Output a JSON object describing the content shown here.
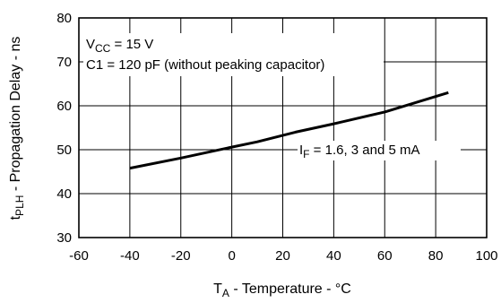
{
  "chart_data": {
    "type": "line",
    "xlabel": {
      "main": "T",
      "sub": "A",
      "rest": " - Temperature - °C"
    },
    "ylabel": {
      "main": "t",
      "sub": "PLH",
      "rest": " - Propagation Delay - ns"
    },
    "xlim": [
      -60,
      100
    ],
    "ylim": [
      30,
      80
    ],
    "x_ticks": [
      -60,
      -40,
      -20,
      0,
      20,
      40,
      60,
      80,
      100
    ],
    "y_ticks": [
      30,
      40,
      50,
      60,
      70,
      80
    ],
    "grid": true,
    "series": [
      {
        "x": [
          -40,
          -20,
          0,
          10,
          25,
          40,
          60,
          85
        ],
        "y": [
          45.8,
          48.1,
          50.6,
          51.8,
          54.0,
          55.9,
          58.6,
          63.0
        ]
      }
    ],
    "annotations": {
      "vcc": {
        "main": "V",
        "sub": "CC",
        "rest": " = 15 V"
      },
      "c1": "C1 = 120 pF (without peaking capacitor)",
      "if_label": {
        "main": "I",
        "sub": "F",
        "rest": " = 1.6, 3 and 5 mA"
      }
    }
  },
  "colors": {
    "line": "#000000",
    "grid": "#000000",
    "background": "#ffffff"
  }
}
